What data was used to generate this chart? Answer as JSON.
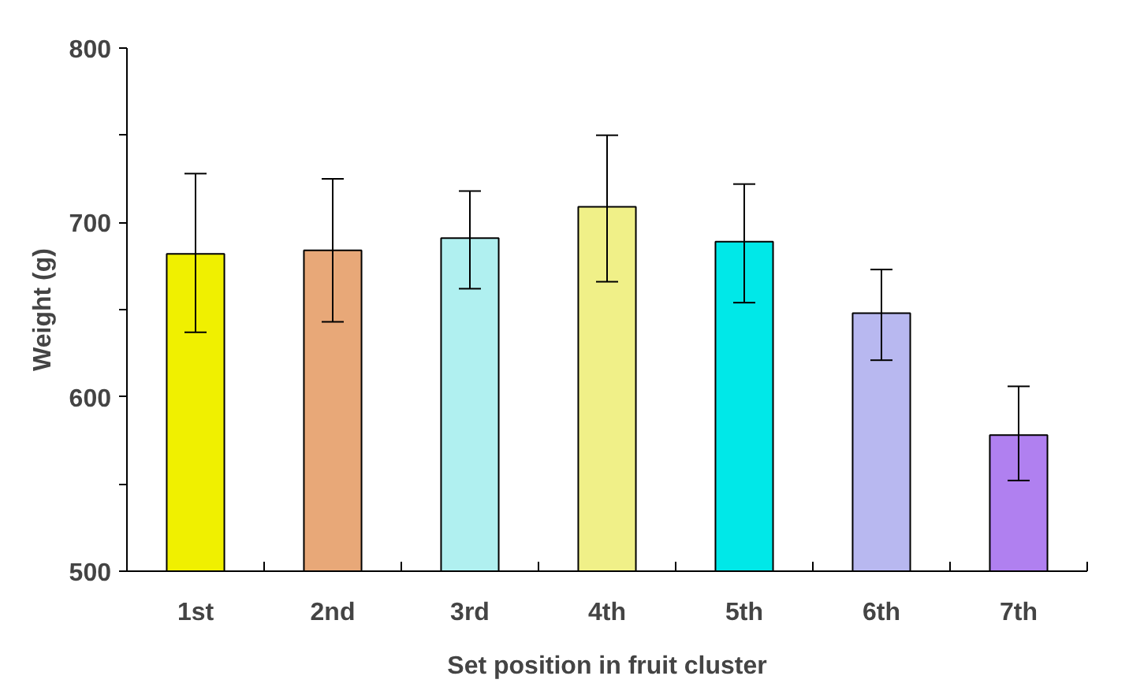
{
  "chart_data": {
    "type": "bar",
    "xlabel": "Set position in fruit cluster",
    "ylabel": "Weight (g)",
    "categories": [
      "1st",
      "2nd",
      "3rd",
      "4th",
      "5th",
      "6th",
      "7th"
    ],
    "values": [
      682,
      684,
      691,
      709,
      689,
      648,
      578
    ],
    "colors": [
      "#f0f000",
      "#e8a878",
      "#b0f0f0",
      "#f0f088",
      "#00e8e8",
      "#b8b8f0",
      "#b080f0"
    ],
    "errors": [
      [
        637,
        728
      ],
      [
        643,
        725
      ],
      [
        662,
        718
      ],
      [
        666,
        750
      ],
      [
        654,
        722
      ],
      [
        621,
        673
      ],
      [
        552,
        606
      ]
    ],
    "ylim": [
      500,
      800
    ],
    "yticks": [
      500,
      {
        "value": 550,
        "label": null
      },
      600,
      {
        "value": 650,
        "label": null
      },
      700,
      {
        "value": 750,
        "label": null
      },
      800
    ],
    "grid": false
  }
}
